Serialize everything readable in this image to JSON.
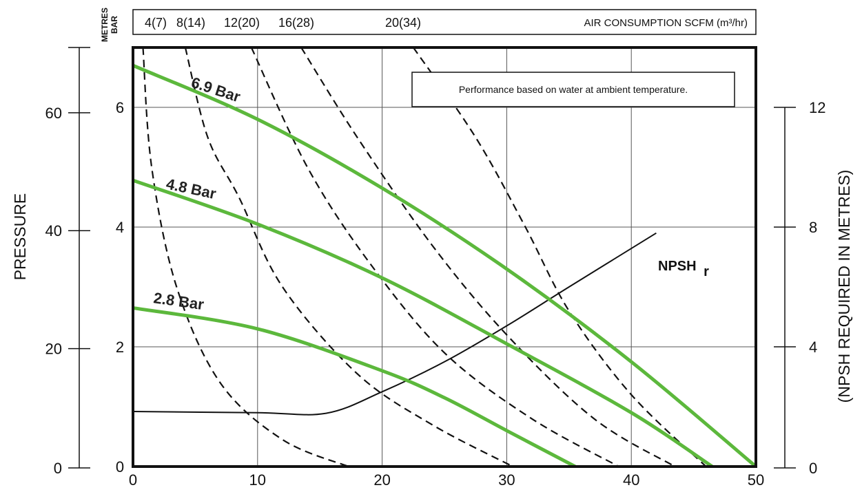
{
  "chart_data": {
    "type": "line",
    "x": {
      "ticks": [
        0,
        10,
        20,
        30,
        40,
        50
      ],
      "ylim_note": "",
      "range": [
        0,
        50
      ]
    },
    "bar_axis": {
      "ticks": [
        "0",
        "2",
        "4",
        "6"
      ],
      "range": [
        0,
        7
      ]
    },
    "metres_axis": {
      "ticks": [
        "0",
        "20",
        "40",
        "60"
      ],
      "title": "PRESSURE"
    },
    "npsh_axis": {
      "ticks": [
        "0",
        "4",
        "8",
        "12"
      ],
      "title": "(NPSH REQUIRED IN METRES)"
    },
    "unit_label_top": "METRES",
    "unit_label_bottom": "BAR",
    "air_axis": {
      "labels": [
        "4(7)",
        "8(14)",
        "12(20)",
        "16(28)",
        "20(34)"
      ],
      "title": "AIR CONSUMPTION SCFM (m³/hr)"
    },
    "note": "Performance based on water at ambient temperature.",
    "pressure_series": [
      {
        "name": "6.9 Bar",
        "color": "#5cb83c",
        "points": [
          [
            0,
            6.7
          ],
          [
            10,
            5.8
          ],
          [
            20,
            4.65
          ],
          [
            30,
            3.3
          ],
          [
            40,
            1.75
          ],
          [
            50,
            0
          ]
        ]
      },
      {
        "name": "4.8 Bar",
        "color": "#5cb83c",
        "points": [
          [
            0,
            4.78
          ],
          [
            10,
            4.05
          ],
          [
            20,
            3.15
          ],
          [
            30,
            2.05
          ],
          [
            40,
            0.9
          ],
          [
            46.5,
            0
          ]
        ]
      },
      {
        "name": "2.8 Bar",
        "color": "#5cb83c",
        "points": [
          [
            0,
            2.65
          ],
          [
            10,
            2.3
          ],
          [
            20,
            1.6
          ],
          [
            25,
            1.15
          ],
          [
            30,
            0.6
          ],
          [
            35.5,
            0
          ]
        ]
      }
    ],
    "air_series": [
      {
        "name": "4(7)",
        "points": [
          [
            0.8,
            7.0
          ],
          [
            1.5,
            5.0
          ],
          [
            3.5,
            3.0
          ],
          [
            7,
            1.4
          ],
          [
            12,
            0.45
          ],
          [
            17.3,
            0
          ]
        ]
      },
      {
        "name": "8(14)",
        "points": [
          [
            4.2,
            7.0
          ],
          [
            6,
            5.5
          ],
          [
            8.5,
            4.5
          ],
          [
            12,
            3.0
          ],
          [
            18,
            1.55
          ],
          [
            24,
            0.7
          ],
          [
            30.5,
            0
          ]
        ]
      },
      {
        "name": "12(20)",
        "points": [
          [
            9.5,
            7.0
          ],
          [
            14,
            5.0
          ],
          [
            19,
            3.4
          ],
          [
            25,
            1.9
          ],
          [
            32,
            0.8
          ],
          [
            39,
            0
          ]
        ]
      },
      {
        "name": "16(28)",
        "points": [
          [
            13.5,
            7.0
          ],
          [
            18,
            5.5
          ],
          [
            24,
            3.7
          ],
          [
            30,
            2.2
          ],
          [
            37,
            0.8
          ],
          [
            43.5,
            0
          ]
        ]
      },
      {
        "name": "20(34)",
        "points": [
          [
            22.5,
            7.0
          ],
          [
            27.5,
            5.5
          ],
          [
            31.5,
            4.0
          ],
          [
            35,
            2.6
          ],
          [
            40,
            1.2
          ],
          [
            46,
            0
          ]
        ]
      }
    ],
    "npsh_series": {
      "name": "NPSH r",
      "label_main": "NPSH",
      "label_sub": "r",
      "points": [
        [
          0,
          0.92
        ],
        [
          10,
          0.9
        ],
        [
          15.5,
          0.89
        ],
        [
          20,
          1.25
        ],
        [
          25,
          1.75
        ],
        [
          30,
          2.35
        ],
        [
          35,
          3.0
        ],
        [
          42,
          3.9
        ]
      ]
    },
    "grid": true
  }
}
